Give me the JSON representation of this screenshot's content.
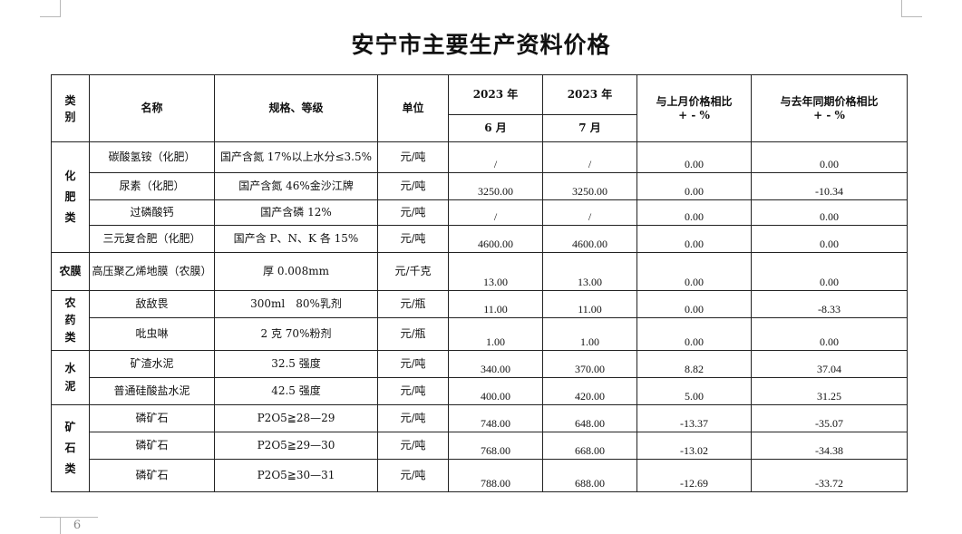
{
  "title": "安宁市主要生产资料价格",
  "page_number": "6",
  "headers": {
    "category": "类别",
    "name": "名称",
    "spec": "规格、等级",
    "unit": "单位",
    "year1": "2023 年",
    "month1": "6 月",
    "year2": "2023 年",
    "month2": "7 月",
    "mom": "与上月价格相比 + - %",
    "yoy": "与去年同期价格相比 + - %"
  },
  "categories": [
    {
      "label": "化肥类",
      "rows": 4
    },
    {
      "label": "农膜",
      "rows": 1
    },
    {
      "label": "农药类",
      "rows": 2
    },
    {
      "label": "水泥",
      "rows": 2
    },
    {
      "label": "矿石类",
      "rows": 3
    }
  ],
  "rows": [
    {
      "name": "碳酸氢铵（化肥）",
      "spec": "国产含氮 17%以上水分≤3.5%",
      "unit": "元/吨",
      "jun": "/",
      "jul": "/",
      "mom": "0.00",
      "yoy": "0.00"
    },
    {
      "name": "尿素（化肥）",
      "spec": "国产含氮 46%金沙江牌",
      "unit": "元/吨",
      "jun": "3250.00",
      "jul": "3250.00",
      "mom": "0.00",
      "yoy": "-10.34"
    },
    {
      "name": "过磷酸钙",
      "spec": "国产含磷 12%",
      "unit": "元/吨",
      "jun": "/",
      "jul": "/",
      "mom": "0.00",
      "yoy": "0.00"
    },
    {
      "name": "三元复合肥（化肥）",
      "spec": "国产含 P、N、K 各 15%",
      "unit": "元/吨",
      "jun": "4600.00",
      "jul": "4600.00",
      "mom": "0.00",
      "yoy": "0.00"
    },
    {
      "name": "高压聚乙烯地膜（农膜）",
      "spec": "厚 0.008mm",
      "unit": "元/千克",
      "jun": "13.00",
      "jul": "13.00",
      "mom": "0.00",
      "yoy": "0.00"
    },
    {
      "name": "敌敌畏",
      "spec": "300ml　80%乳剂",
      "unit": "元/瓶",
      "jun": "11.00",
      "jul": "11.00",
      "mom": "0.00",
      "yoy": "-8.33"
    },
    {
      "name": "吡虫啉",
      "spec": "2 克 70%粉剂",
      "unit": "元/瓶",
      "jun": "1.00",
      "jul": "1.00",
      "mom": "0.00",
      "yoy": "0.00"
    },
    {
      "name": "矿渣水泥",
      "spec": "32.5 强度",
      "unit": "元/吨",
      "jun": "340.00",
      "jul": "370.00",
      "mom": "8.82",
      "yoy": "37.04"
    },
    {
      "name": "普通硅酸盐水泥",
      "spec": "42.5 强度",
      "unit": "元/吨",
      "jun": "400.00",
      "jul": "420.00",
      "mom": "5.00",
      "yoy": "31.25"
    },
    {
      "name": "磷矿石",
      "spec": "P2O5≧28—29",
      "unit": "元/吨",
      "jun": "748.00",
      "jul": "648.00",
      "mom": "-13.37",
      "yoy": "-35.07"
    },
    {
      "name": "磷矿石",
      "spec": "P2O5≧29—30",
      "unit": "元/吨",
      "jun": "768.00",
      "jul": "668.00",
      "mom": "-13.02",
      "yoy": "-34.38"
    },
    {
      "name": "磷矿石",
      "spec": "P2O5≧30—31",
      "unit": "元/吨",
      "jun": "788.00",
      "jul": "688.00",
      "mom": "-12.69",
      "yoy": "-33.72"
    }
  ]
}
